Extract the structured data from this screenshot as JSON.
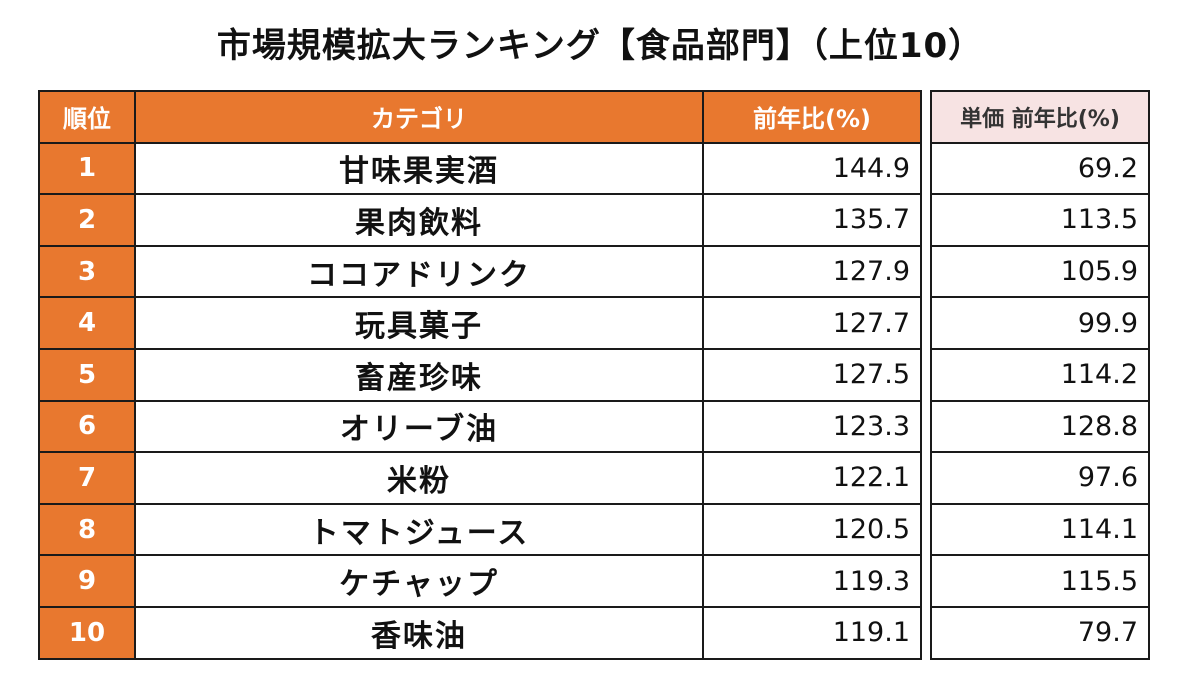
{
  "title": "市場規模拡大ランキング【食品部門】（上位10）",
  "headers": {
    "rank": "順位",
    "category": "カテゴリ",
    "yoy": "前年比(%)",
    "unit_price_yoy": "単価 前年比(%)"
  },
  "rows": [
    {
      "rank": "1",
      "category": "甘味果実酒",
      "yoy": "144.9",
      "unit_price_yoy": "69.2"
    },
    {
      "rank": "2",
      "category": "果肉飲料",
      "yoy": "135.7",
      "unit_price_yoy": "113.5"
    },
    {
      "rank": "3",
      "category": "ココアドリンク",
      "yoy": "127.9",
      "unit_price_yoy": "105.9"
    },
    {
      "rank": "4",
      "category": "玩具菓子",
      "yoy": "127.7",
      "unit_price_yoy": "99.9"
    },
    {
      "rank": "5",
      "category": "畜産珍味",
      "yoy": "127.5",
      "unit_price_yoy": "114.2"
    },
    {
      "rank": "6",
      "category": "オリーブ油",
      "yoy": "123.3",
      "unit_price_yoy": "128.8"
    },
    {
      "rank": "7",
      "category": "米粉",
      "yoy": "122.1",
      "unit_price_yoy": "97.6"
    },
    {
      "rank": "8",
      "category": "トマトジュース",
      "yoy": "120.5",
      "unit_price_yoy": "114.1"
    },
    {
      "rank": "9",
      "category": "ケチャップ",
      "yoy": "119.3",
      "unit_price_yoy": "115.5"
    },
    {
      "rank": "10",
      "category": "香味油",
      "yoy": "119.1",
      "unit_price_yoy": "79.7"
    }
  ],
  "colors": {
    "header_accent": "#e8782f",
    "side_header_bg": "#f7e3e3"
  }
}
